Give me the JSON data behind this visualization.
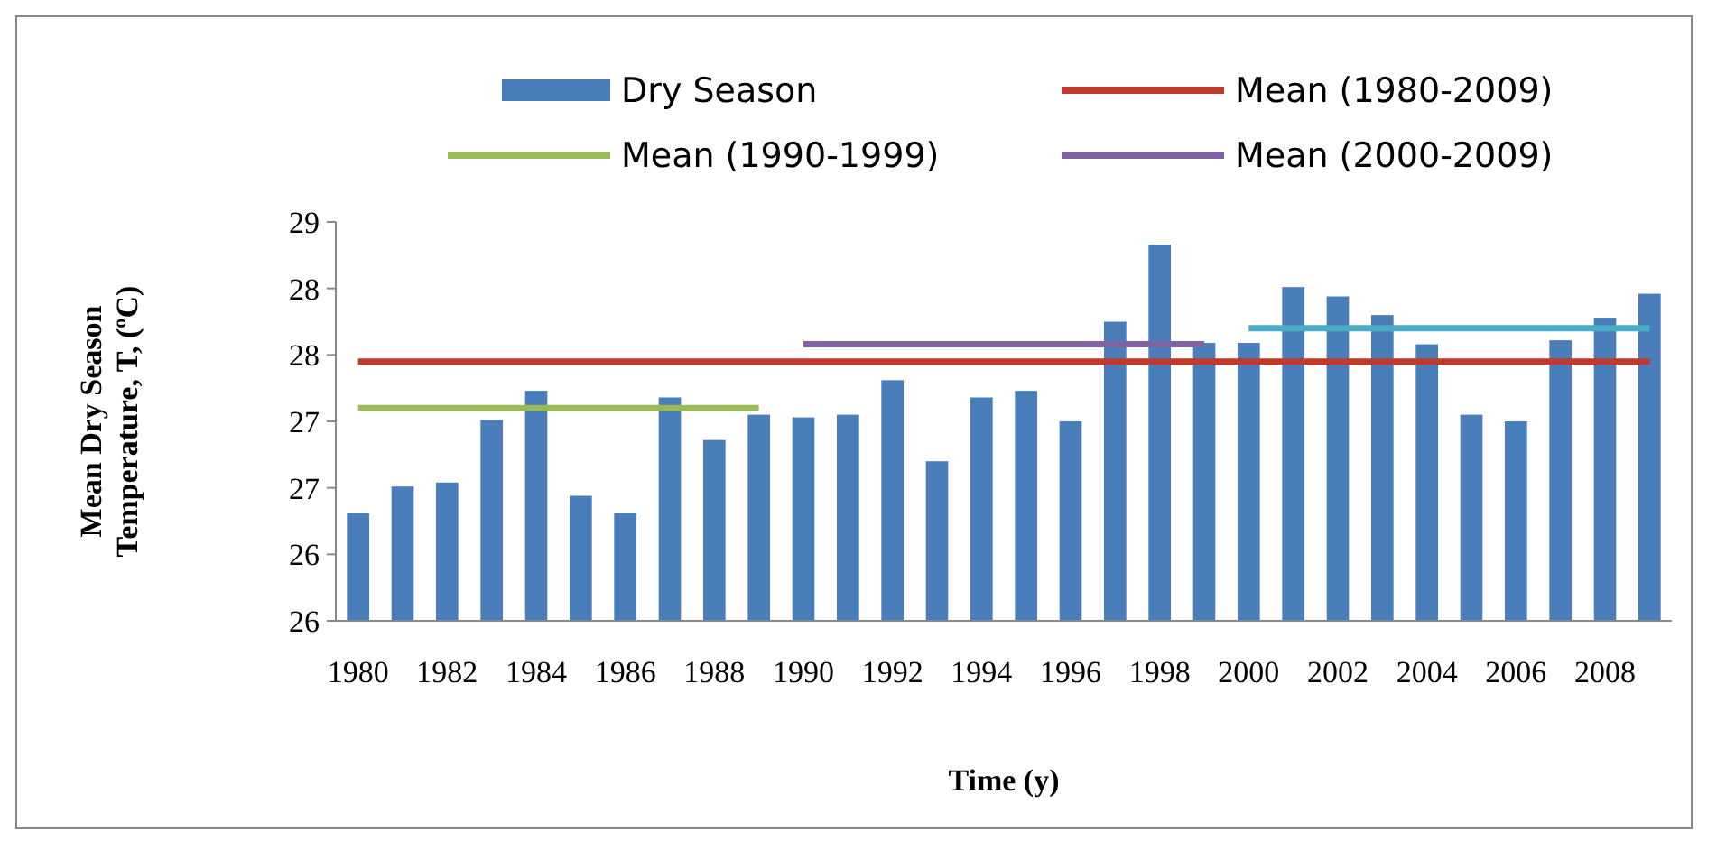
{
  "chart_data": {
    "type": "bar",
    "xlabel": "Time (y)",
    "ylabel": "Mean Dry Season Temperature, T, (ºC)",
    "categories": [
      "1980",
      null,
      "1982",
      null,
      "1984",
      null,
      "1986",
      null,
      "1988",
      null,
      "1990",
      null,
      "1992",
      null,
      "1994",
      null,
      "1996",
      null,
      "1998",
      null,
      "2000",
      null,
      "2002",
      null,
      "2004",
      null,
      "2006",
      null,
      "2008",
      null
    ],
    "ylim": [
      26,
      29
    ],
    "yticks": [
      {
        "value": 26,
        "label": "26"
      },
      {
        "value": 26.5,
        "label": "26"
      },
      {
        "value": 27,
        "label": "27"
      },
      {
        "value": 27.5,
        "label": "27"
      },
      {
        "value": 28,
        "label": "28"
      },
      {
        "value": 28.5,
        "label": "28"
      },
      {
        "value": 29,
        "label": "29"
      }
    ],
    "legend": "top",
    "series": [
      {
        "name": "Dry Season",
        "color": "#4a7ebb",
        "values": [
          26.81,
          27.01,
          27.04,
          27.51,
          27.73,
          26.94,
          26.81,
          27.68,
          27.36,
          27.55,
          27.53,
          27.55,
          27.81,
          27.2,
          27.68,
          27.73,
          27.5,
          28.25,
          28.83,
          28.09,
          28.09,
          28.51,
          28.44,
          28.3,
          28.08,
          27.55,
          27.5,
          28.11,
          28.28,
          28.46
        ]
      },
      {
        "name": "Mean (1980-2009)",
        "type": "line",
        "color": "#c0392b",
        "values": [
          27.95,
          27.95,
          27.95,
          27.95,
          27.95,
          27.95,
          27.95,
          27.95,
          27.95,
          27.95,
          27.95,
          27.95,
          27.95,
          27.95,
          27.95,
          27.95,
          27.95,
          27.95,
          27.95,
          27.95,
          27.95,
          27.95,
          27.95,
          27.95,
          27.95,
          27.95,
          27.95,
          27.95,
          27.95,
          27.95
        ]
      },
      {
        "name": "Mean (1990-1999)",
        "type": "line",
        "color": "#9bbb59",
        "values": [
          27.6,
          27.6,
          27.6,
          27.6,
          27.6,
          27.6,
          27.6,
          27.6,
          27.6,
          27.6,
          null,
          null,
          null,
          null,
          null,
          null,
          null,
          null,
          null,
          null,
          null,
          null,
          null,
          null,
          null,
          null,
          null,
          null,
          null,
          null
        ]
      },
      {
        "name": "Mean (2000-2009)",
        "type": "line",
        "color": "#8064a2",
        "values": [
          null,
          null,
          null,
          null,
          null,
          null,
          null,
          null,
          null,
          null,
          28.08,
          28.08,
          28.08,
          28.08,
          28.08,
          28.08,
          28.08,
          28.08,
          28.08,
          28.08,
          null,
          null,
          null,
          null,
          null,
          null,
          null,
          null,
          null,
          null
        ]
      },
      {
        "type": "line",
        "color": "#4bacc6",
        "values": [
          null,
          null,
          null,
          null,
          null,
          null,
          null,
          null,
          null,
          null,
          null,
          null,
          null,
          null,
          null,
          null,
          null,
          null,
          null,
          null,
          28.2,
          28.2,
          28.2,
          28.2,
          28.2,
          28.2,
          28.2,
          28.2,
          28.2,
          28.2
        ]
      }
    ]
  }
}
